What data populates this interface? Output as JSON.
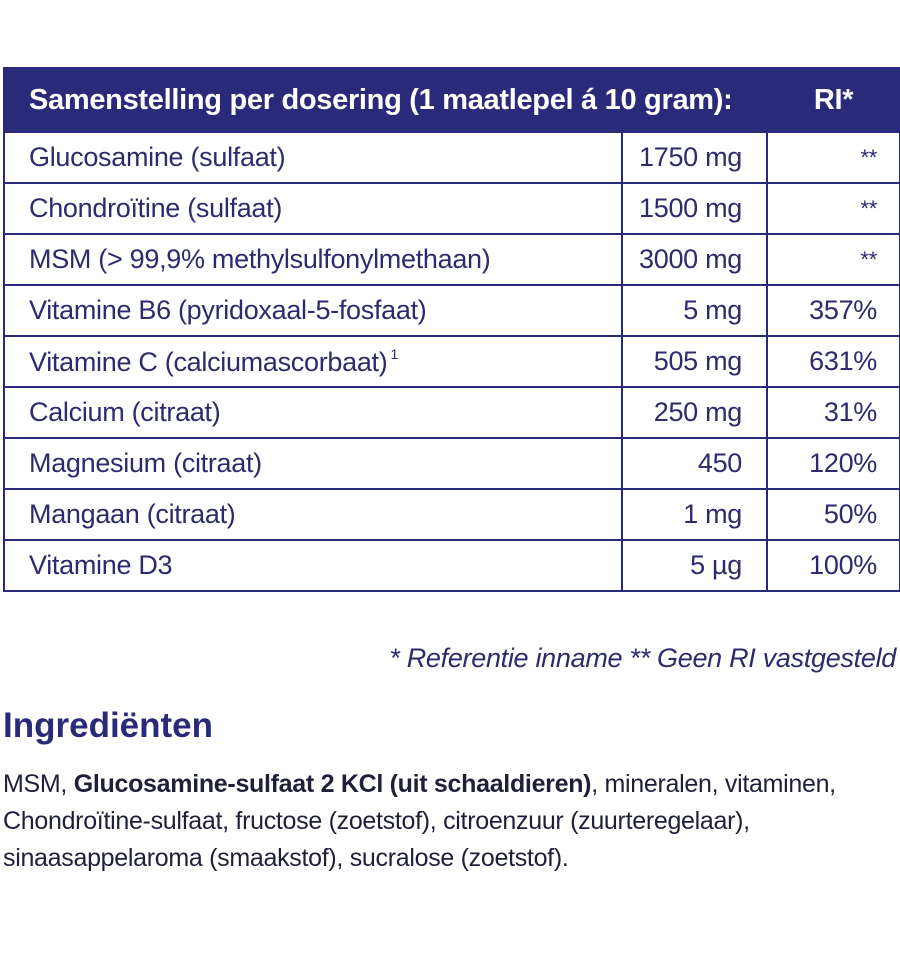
{
  "table": {
    "header": {
      "composition": "Samenstelling per dosering (1 maatlepel á 10 gram):",
      "ri": "RI*"
    },
    "rows": [
      {
        "name": "Glucosamine (sulfaat)",
        "footnote": "",
        "amount": "1750 mg",
        "ri": "**"
      },
      {
        "name": "Chondroïtine (sulfaat)",
        "footnote": "",
        "amount": "1500 mg",
        "ri": "**"
      },
      {
        "name": "MSM (> 99,9% methylsulfonylmethaan)",
        "footnote": "",
        "amount": "3000 mg",
        "ri": "**"
      },
      {
        "name": "Vitamine B6 (pyridoxaal-5-fosfaat)",
        "footnote": "",
        "amount": "5 mg",
        "ri": "357%"
      },
      {
        "name": "Vitamine C (calciumascorbaat)",
        "footnote": "1",
        "amount": "505 mg",
        "ri": "631%"
      },
      {
        "name": "Calcium (citraat)",
        "footnote": "",
        "amount": "250 mg",
        "ri": "31%"
      },
      {
        "name": "Magnesium (citraat)",
        "footnote": "",
        "amount": "450",
        "ri": "120%"
      },
      {
        "name": "Mangaan (citraat)",
        "footnote": "",
        "amount": "1 mg",
        "ri": "50%"
      },
      {
        "name": "Vitamine D3",
        "footnote": "",
        "amount": "5 µg",
        "ri": "100%"
      }
    ]
  },
  "footnote": "* Referentie inname  ** Geen RI vastgesteld",
  "ingredients": {
    "title": "Ingrediënten",
    "text_before": "MSM, ",
    "text_bold": "Glucosamine-sulfaat 2 KCl (uit schaaldieren)",
    "text_after": ", mineralen, vitaminen, Chondroïtine-sulfaat, fructose (zoetstof), citroenzuur (zuurteregelaar), sinaasappelaroma (smaakstof), sucralose (zoetstof)."
  },
  "colors": {
    "header_bg": "#2a2a7a",
    "text": "#2d2a6e",
    "border": "#2a2a7a"
  }
}
